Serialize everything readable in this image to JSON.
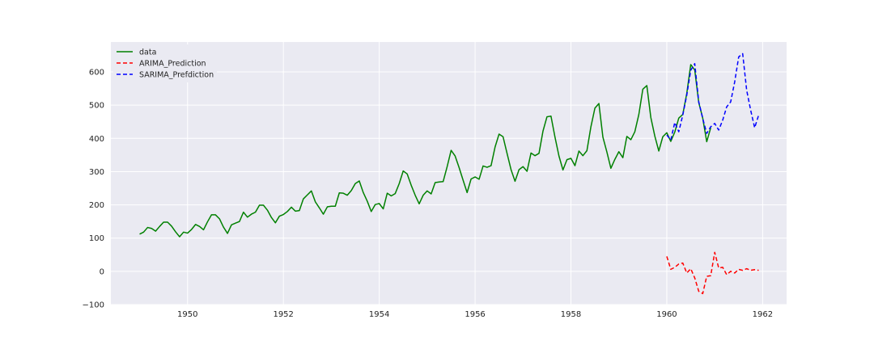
{
  "chart_data": {
    "type": "line",
    "title": "",
    "xlabel": "",
    "ylabel": "",
    "xlim": [
      1948.4,
      1962.5
    ],
    "ylim": [
      -100,
      690
    ],
    "x_ticks": [
      1950,
      1952,
      1954,
      1956,
      1958,
      1960,
      1962
    ],
    "x_tick_labels": [
      "1950",
      "1952",
      "1954",
      "1956",
      "1958",
      "1960",
      "1962"
    ],
    "y_ticks": [
      -100,
      0,
      100,
      200,
      300,
      400,
      500,
      600
    ],
    "y_tick_labels": [
      "−100",
      "0",
      "100",
      "200",
      "300",
      "400",
      "500",
      "600"
    ],
    "grid": true,
    "legend_position": "top-left",
    "background_color": "#eaeaf2",
    "series": [
      {
        "name": "data",
        "color": "#008000",
        "style": "solid",
        "x_start": 1949.0,
        "x_step": 0.0833333,
        "values": [
          112,
          118,
          132,
          129,
          121,
          135,
          148,
          148,
          136,
          119,
          104,
          118,
          115,
          126,
          141,
          135,
          125,
          149,
          170,
          170,
          158,
          133,
          114,
          140,
          145,
          150,
          178,
          163,
          172,
          178,
          199,
          199,
          184,
          162,
          146,
          166,
          171,
          180,
          193,
          181,
          183,
          218,
          230,
          242,
          209,
          191,
          172,
          194,
          196,
          196,
          236,
          235,
          229,
          243,
          264,
          272,
          237,
          211,
          180,
          201,
          204,
          188,
          235,
          227,
          234,
          264,
          302,
          293,
          259,
          229,
          203,
          229,
          242,
          233,
          267,
          269,
          270,
          315,
          364,
          347,
          312,
          274,
          237,
          278,
          284,
          277,
          317,
          313,
          318,
          374,
          413,
          405,
          355,
          306,
          271,
          306,
          315,
          301,
          356,
          348,
          355,
          422,
          465,
          467,
          404,
          347,
          305,
          336,
          340,
          318,
          362,
          348,
          363,
          435,
          491,
          505,
          404,
          359,
          310,
          337,
          360,
          342,
          406,
          396,
          420,
          472,
          548,
          559,
          463,
          407,
          362,
          405,
          417,
          391,
          419,
          461,
          472,
          535,
          622,
          606,
          508,
          461,
          390,
          432
        ]
      },
      {
        "name": "ARIMA_Prediction",
        "color": "#ff0000",
        "style": "dashed",
        "x_start": 1960.0,
        "x_step": 0.0833333,
        "values": [
          45,
          6,
          12,
          22,
          25,
          -5,
          8,
          -20,
          -60,
          -67,
          -15,
          -13,
          57,
          10,
          12,
          -10,
          0,
          -5,
          6,
          3,
          8,
          3,
          5,
          3
        ]
      },
      {
        "name": "SARIMA_Prefdiction",
        "color": "#0000ff",
        "style": "dashed",
        "x_start": 1960.0,
        "x_step": 0.0833333,
        "values": [
          410,
          395,
          448,
          420,
          470,
          530,
          605,
          625,
          510,
          460,
          415,
          435,
          445,
          425,
          455,
          495,
          510,
          570,
          645,
          655,
          545,
          485,
          432,
          470
        ]
      }
    ]
  }
}
